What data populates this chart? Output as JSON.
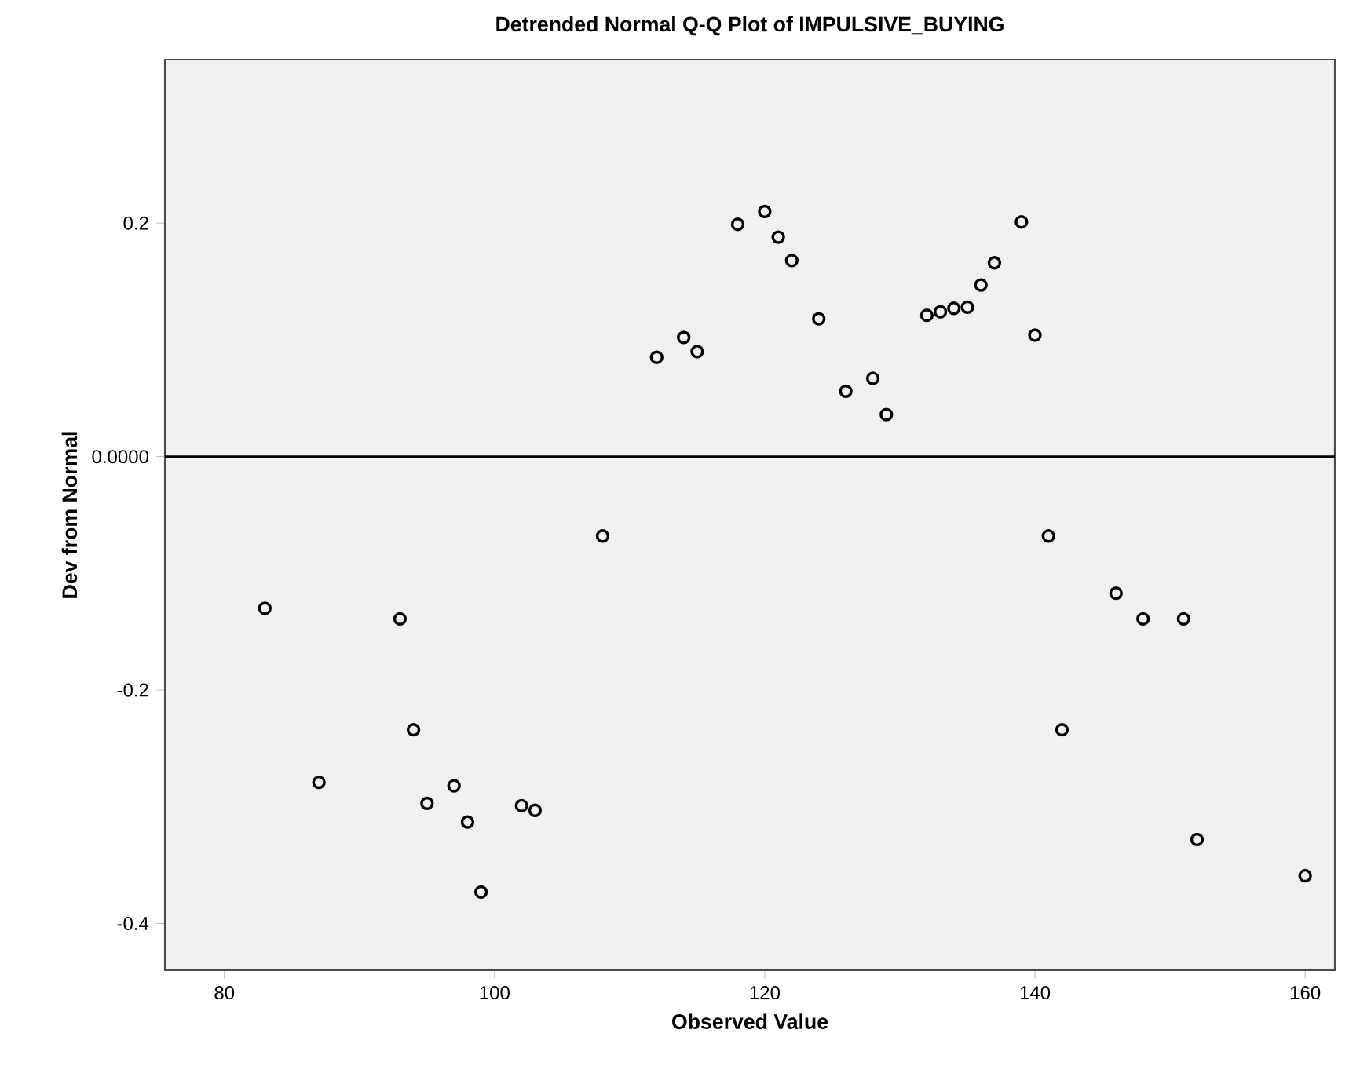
{
  "chart_data": {
    "type": "scatter",
    "title": "Detrended Normal Q-Q Plot of IMPULSIVE_BUYING",
    "xlabel": "Observed Value",
    "ylabel": "Dev from Normal",
    "series": [
      {
        "color": "#000000",
        "x": [
          83,
          87,
          93,
          94,
          95,
          97,
          98,
          99,
          102,
          103,
          108,
          112,
          114,
          115,
          118,
          120,
          121,
          122,
          124,
          126,
          128,
          129,
          132,
          133,
          134,
          135,
          136,
          137,
          139,
          140,
          141,
          142,
          146,
          148,
          151,
          152,
          160
        ],
        "values": [
          -0.13,
          -0.279,
          -0.139,
          -0.234,
          -0.297,
          -0.282,
          -0.313,
          -0.373,
          -0.299,
          -0.303,
          -0.068,
          0.085,
          0.102,
          0.09,
          0.199,
          0.21,
          0.188,
          0.168,
          0.118,
          0.056,
          0.067,
          0.036,
          0.121,
          0.124,
          0.127,
          0.128,
          0.147,
          0.166,
          0.201,
          0.104,
          -0.068,
          -0.234,
          -0.117,
          -0.139,
          -0.139,
          -0.328,
          -0.359
        ]
      }
    ],
    "marker": "circle",
    "grid": false,
    "xlim": [
      75.6,
      162.2
    ],
    "ylim": [
      -0.44,
      0.34
    ],
    "xticks": [
      80,
      100,
      120,
      140,
      160
    ],
    "yticks": [
      -0.4,
      -0.2,
      {
        "value": 0,
        "label": "0.0000"
      },
      0.2
    ],
    "ref_lines": [
      {
        "axis": "y",
        "value": 0,
        "color": "#000000"
      }
    ]
  }
}
